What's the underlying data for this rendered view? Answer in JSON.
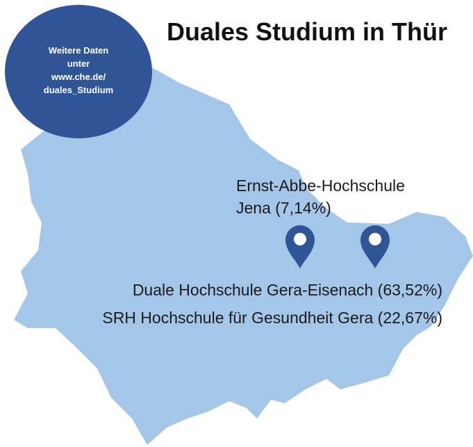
{
  "title": "Duales Studium in Thür",
  "badge": {
    "lines": [
      "Weitere Daten",
      "unter",
      "www.che.de/",
      "duales_Studium"
    ]
  },
  "labels": [
    {
      "lines": [
        "Ernst-Abbe-Hochschule",
        "Jena (7,14%)"
      ]
    },
    {
      "lines": [
        "Duale Hochschule Gera-Eisenach (63,52%)"
      ]
    },
    {
      "lines": [
        "SRH Hochschule für Gesundheit Gera (22,67%)"
      ]
    }
  ]
}
